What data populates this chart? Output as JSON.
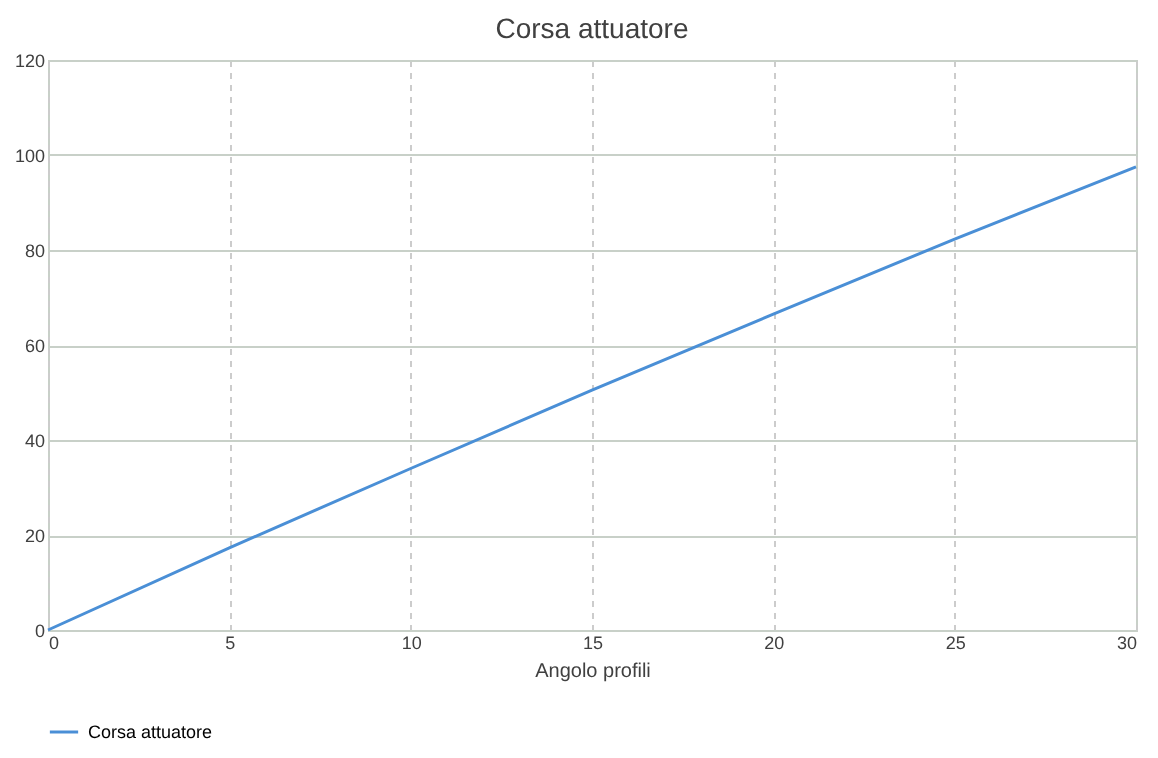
{
  "chart_data": {
    "type": "line",
    "title": "Corsa attuatore",
    "xlabel": "Angolo profili",
    "x": [
      0,
      5,
      10,
      15,
      20,
      25,
      30
    ],
    "series": [
      {
        "name": "Corsa attuatore",
        "color": "#4a8fd6",
        "values": [
          0,
          17.3,
          34,
          50.5,
          66.5,
          82.3,
          97.5
        ]
      }
    ],
    "xlim": [
      0,
      30
    ],
    "xticks": [
      0,
      5,
      10,
      15,
      20,
      25,
      30
    ],
    "ylim": [
      0,
      120
    ],
    "yticks": [
      0,
      20,
      40,
      60,
      80,
      100,
      120
    ],
    "grid": true,
    "legend": "bottom",
    "marker": "none",
    "line_style": "solid"
  }
}
